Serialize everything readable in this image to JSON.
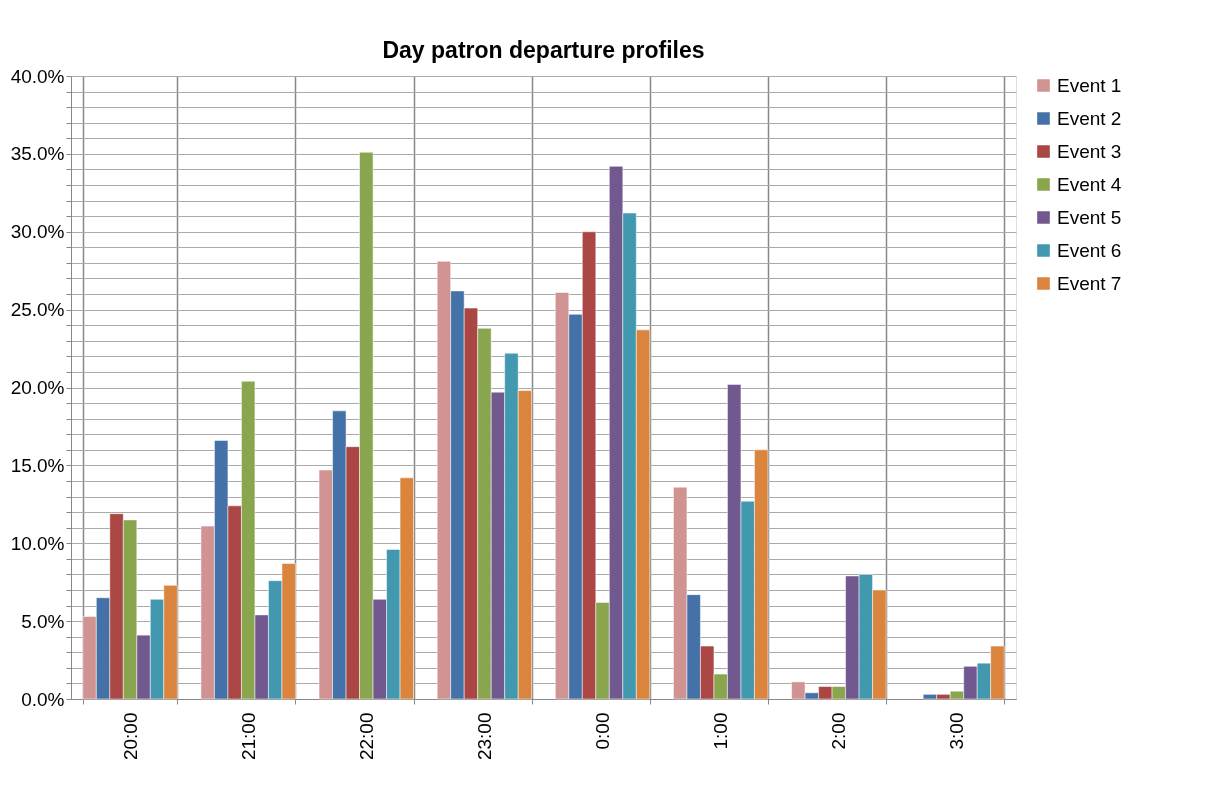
{
  "chart_data": {
    "type": "bar",
    "title": "Day patron departure profiles",
    "categories": [
      "20:00",
      "21:00",
      "22:00",
      "23:00",
      "0:00",
      "1:00",
      "2:00",
      "3:00"
    ],
    "series": [
      {
        "name": "Event 1",
        "color": "#d19392",
        "values": [
          5.3,
          11.1,
          14.7,
          28.1,
          26.1,
          13.6,
          1.1,
          null
        ]
      },
      {
        "name": "Event 2",
        "color": "#4472a8",
        "values": [
          6.5,
          16.6,
          18.5,
          26.2,
          24.7,
          6.7,
          0.4,
          0.3
        ]
      },
      {
        "name": "Event 3",
        "color": "#aa4643",
        "values": [
          11.9,
          12.4,
          16.2,
          25.1,
          30.0,
          3.4,
          0.8,
          0.3
        ]
      },
      {
        "name": "Event 4",
        "color": "#89a54e",
        "values": [
          11.5,
          20.4,
          35.1,
          23.8,
          6.2,
          1.6,
          0.8,
          0.5
        ]
      },
      {
        "name": "Event 5",
        "color": "#71588f",
        "values": [
          4.1,
          5.4,
          6.4,
          19.7,
          34.2,
          20.2,
          7.9,
          2.1
        ]
      },
      {
        "name": "Event 6",
        "color": "#4198af",
        "values": [
          6.4,
          7.6,
          9.6,
          22.2,
          31.2,
          12.7,
          8.0,
          2.3
        ]
      },
      {
        "name": "Event 7",
        "color": "#db843d",
        "values": [
          7.3,
          8.7,
          14.2,
          19.8,
          23.7,
          16.0,
          7.0,
          3.4
        ]
      }
    ],
    "ylim": [
      0,
      40
    ],
    "yticks": [
      {
        "value": 0,
        "label": "0.0%"
      },
      {
        "value": 1,
        "label": null
      },
      {
        "value": 2,
        "label": null
      },
      {
        "value": 3,
        "label": null
      },
      {
        "value": 4,
        "label": null
      },
      {
        "value": 5,
        "label": "5.0%"
      },
      {
        "value": 6,
        "label": null
      },
      {
        "value": 7,
        "label": null
      },
      {
        "value": 8,
        "label": null
      },
      {
        "value": 9,
        "label": null
      },
      {
        "value": 10,
        "label": "10.0%"
      },
      {
        "value": 11,
        "label": null
      },
      {
        "value": 12,
        "label": null
      },
      {
        "value": 13,
        "label": null
      },
      {
        "value": 14,
        "label": null
      },
      {
        "value": 15,
        "label": "15.0%"
      },
      {
        "value": 16,
        "label": null
      },
      {
        "value": 17,
        "label": null
      },
      {
        "value": 18,
        "label": null
      },
      {
        "value": 19,
        "label": null
      },
      {
        "value": 20,
        "label": "20.0%"
      },
      {
        "value": 21,
        "label": null
      },
      {
        "value": 22,
        "label": null
      },
      {
        "value": 23,
        "label": null
      },
      {
        "value": 24,
        "label": null
      },
      {
        "value": 25,
        "label": "25.0%"
      },
      {
        "value": 26,
        "label": null
      },
      {
        "value": 27,
        "label": null
      },
      {
        "value": 28,
        "label": null
      },
      {
        "value": 29,
        "label": null
      },
      {
        "value": 30,
        "label": "30.0%"
      },
      {
        "value": 31,
        "label": null
      },
      {
        "value": 32,
        "label": null
      },
      {
        "value": 33,
        "label": null
      },
      {
        "value": 34,
        "label": null
      },
      {
        "value": 35,
        "label": "35.0%"
      },
      {
        "value": 36,
        "label": null
      },
      {
        "value": 37,
        "label": null
      },
      {
        "value": 38,
        "label": null
      },
      {
        "value": 39,
        "label": null
      },
      {
        "value": 40,
        "label": "40.0%"
      }
    ],
    "grid": true,
    "legend": "right"
  }
}
